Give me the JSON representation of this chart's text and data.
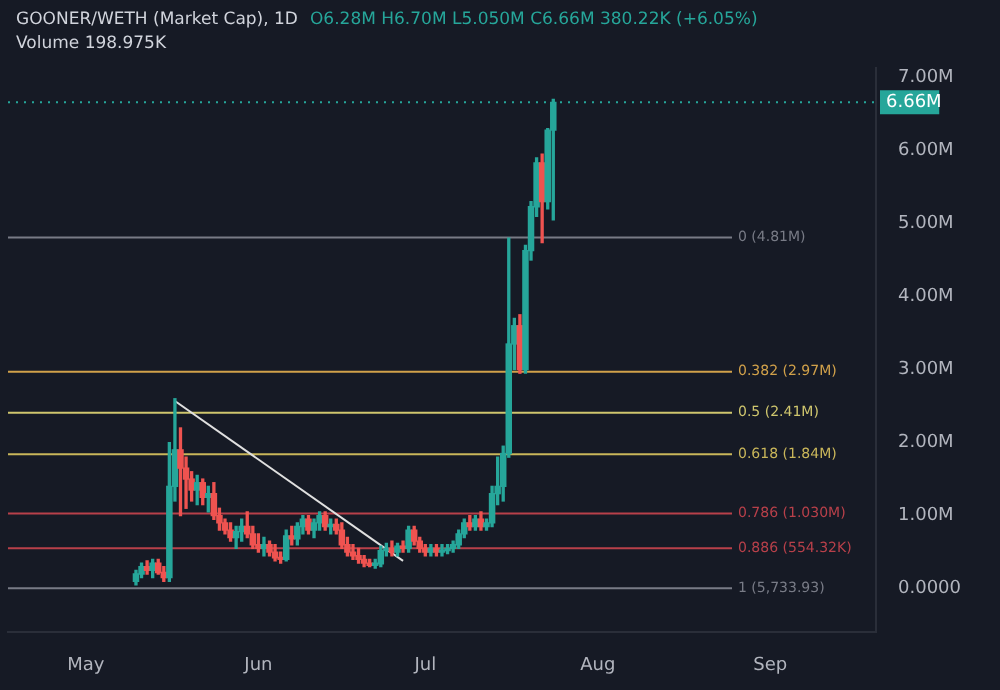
{
  "chart_data": {
    "type": "candlestick",
    "title": "GOONER/WETH (Market Cap), 1D",
    "annotations": [
      "O6.28M H6.70M L5.050M C6.66M 380.22K (+6.05%)",
      "Volume 198.975K"
    ],
    "x": [
      "--05-10",
      "--05-11",
      "--05-12",
      "--05-13",
      "--05-14",
      "--05-15",
      "--05-16",
      "--05-17",
      "--05-18",
      "--05-19",
      "--05-20",
      "--05-21",
      "--05-22",
      "--05-23",
      "--05-24",
      "--05-25",
      "--05-26",
      "--05-27",
      "--05-28",
      "--05-29",
      "--05-30",
      "--05-31",
      "--06-01",
      "--06-02",
      "--06-03",
      "--06-04",
      "--06-05",
      "--06-06",
      "--06-07",
      "--06-08",
      "--06-09",
      "--06-10",
      "--06-11",
      "--06-12",
      "--06-13",
      "--06-14",
      "--06-15",
      "--06-16",
      "--06-17",
      "--06-18",
      "--06-19",
      "--06-20",
      "--06-21",
      "--06-22",
      "--06-23",
      "--06-24",
      "--06-25",
      "--06-26",
      "--06-27",
      "--06-28",
      "--06-29",
      "--06-30",
      "--07-01",
      "--07-02",
      "--07-03",
      "--07-04",
      "--07-05",
      "--07-06",
      "--07-07",
      "--07-08",
      "--07-09",
      "--07-10",
      "--07-11",
      "--07-12",
      "--07-13",
      "--07-14",
      "--07-15",
      "--07-16",
      "--07-17",
      "--07-18",
      "--07-19",
      "--07-20",
      "--07-21",
      "--07-22",
      "--07-23",
      "--07-24"
    ],
    "ohlc": [
      [
        0.1,
        0.25,
        0.05,
        0.2
      ],
      [
        0.2,
        0.35,
        0.15,
        0.3
      ],
      [
        0.3,
        0.38,
        0.2,
        0.25
      ],
      [
        0.25,
        0.4,
        0.15,
        0.35
      ],
      [
        0.35,
        0.4,
        0.2,
        0.22
      ],
      [
        0.22,
        0.3,
        0.1,
        0.15
      ],
      [
        0.15,
        2.0,
        0.1,
        1.4
      ],
      [
        1.4,
        2.6,
        1.2,
        1.9
      ],
      [
        1.9,
        2.2,
        1.0,
        1.65
      ],
      [
        1.65,
        1.8,
        1.1,
        1.5
      ],
      [
        1.5,
        1.6,
        1.2,
        1.35
      ],
      [
        1.35,
        1.55,
        1.15,
        1.45
      ],
      [
        1.45,
        1.5,
        1.15,
        1.25
      ],
      [
        1.25,
        1.4,
        1.05,
        1.3
      ],
      [
        1.3,
        1.45,
        0.95,
        1.0
      ],
      [
        1.0,
        1.1,
        0.8,
        0.9
      ],
      [
        0.9,
        0.95,
        0.75,
        0.8
      ],
      [
        0.8,
        0.9,
        0.65,
        0.7
      ],
      [
        0.7,
        0.85,
        0.55,
        0.78
      ],
      [
        0.78,
        0.95,
        0.65,
        0.85
      ],
      [
        0.85,
        1.05,
        0.7,
        0.75
      ],
      [
        0.75,
        0.85,
        0.55,
        0.6
      ],
      [
        0.6,
        0.75,
        0.5,
        0.55
      ],
      [
        0.55,
        0.7,
        0.45,
        0.6
      ],
      [
        0.6,
        0.65,
        0.45,
        0.5
      ],
      [
        0.5,
        0.6,
        0.38,
        0.42
      ],
      [
        0.42,
        0.5,
        0.35,
        0.4
      ],
      [
        0.4,
        0.8,
        0.38,
        0.72
      ],
      [
        0.72,
        0.85,
        0.6,
        0.68
      ],
      [
        0.68,
        0.9,
        0.6,
        0.85
      ],
      [
        0.85,
        1.0,
        0.75,
        0.95
      ],
      [
        0.95,
        1.0,
        0.75,
        0.8
      ],
      [
        0.8,
        0.95,
        0.7,
        0.9
      ],
      [
        0.9,
        1.05,
        0.8,
        1.0
      ],
      [
        1.0,
        1.05,
        0.8,
        0.85
      ],
      [
        0.85,
        0.95,
        0.75,
        0.88
      ],
      [
        0.88,
        0.95,
        0.75,
        0.8
      ],
      [
        0.8,
        0.9,
        0.55,
        0.6
      ],
      [
        0.6,
        0.7,
        0.45,
        0.5
      ],
      [
        0.5,
        0.6,
        0.4,
        0.45
      ],
      [
        0.45,
        0.55,
        0.35,
        0.4
      ],
      [
        0.4,
        0.45,
        0.3,
        0.35
      ],
      [
        0.35,
        0.4,
        0.3,
        0.32
      ],
      [
        0.32,
        0.4,
        0.28,
        0.34
      ],
      [
        0.34,
        0.58,
        0.3,
        0.52
      ],
      [
        0.52,
        0.62,
        0.45,
        0.55
      ],
      [
        0.55,
        0.65,
        0.45,
        0.5
      ],
      [
        0.5,
        0.62,
        0.45,
        0.58
      ],
      [
        0.58,
        0.65,
        0.5,
        0.55
      ],
      [
        0.55,
        0.85,
        0.5,
        0.8
      ],
      [
        0.8,
        0.85,
        0.6,
        0.65
      ],
      [
        0.65,
        0.7,
        0.5,
        0.55
      ],
      [
        0.55,
        0.6,
        0.45,
        0.5
      ],
      [
        0.5,
        0.6,
        0.45,
        0.55
      ],
      [
        0.55,
        0.6,
        0.45,
        0.5
      ],
      [
        0.5,
        0.6,
        0.45,
        0.52
      ],
      [
        0.52,
        0.6,
        0.48,
        0.55
      ],
      [
        0.55,
        0.65,
        0.5,
        0.6
      ],
      [
        0.6,
        0.8,
        0.55,
        0.75
      ],
      [
        0.75,
        0.95,
        0.7,
        0.9
      ],
      [
        0.9,
        1.0,
        0.8,
        0.85
      ],
      [
        0.85,
        1.0,
        0.8,
        0.95
      ],
      [
        0.95,
        1.05,
        0.8,
        0.85
      ],
      [
        0.85,
        0.95,
        0.8,
        0.9
      ],
      [
        0.9,
        1.4,
        0.85,
        1.3
      ],
      [
        1.3,
        1.8,
        1.15,
        1.4
      ],
      [
        1.4,
        1.95,
        1.2,
        1.85
      ],
      [
        1.85,
        4.8,
        1.8,
        3.35
      ],
      [
        3.35,
        3.7,
        3.0,
        3.6
      ],
      [
        3.6,
        3.75,
        2.95,
        3.0
      ],
      [
        3.0,
        4.7,
        2.95,
        4.63
      ],
      [
        4.63,
        5.3,
        4.5,
        5.23
      ],
      [
        5.23,
        5.9,
        5.1,
        5.83
      ],
      [
        5.83,
        5.95,
        4.74,
        5.3
      ],
      [
        5.3,
        6.3,
        5.2,
        6.28
      ],
      [
        6.28,
        6.7,
        5.05,
        6.66
      ]
    ],
    "colors": [
      "#26a69a",
      "#26a69a",
      "#ef5350",
      "#26a69a",
      "#ef5350",
      "#ef5350",
      "#26a69a",
      "#26a69a",
      "#ef5350",
      "#ef5350",
      "#ef5350",
      "#26a69a",
      "#ef5350",
      "#26a69a",
      "#ef5350",
      "#ef5350",
      "#ef5350",
      "#ef5350",
      "#26a69a",
      "#26a69a",
      "#ef5350",
      "#ef5350",
      "#ef5350",
      "#26a69a",
      "#ef5350",
      "#ef5350",
      "#ef5350",
      "#26a69a",
      "#ef5350",
      "#26a69a",
      "#26a69a",
      "#ef5350",
      "#26a69a",
      "#26a69a",
      "#ef5350",
      "#26a69a",
      "#ef5350",
      "#ef5350",
      "#ef5350",
      "#ef5350",
      "#ef5350",
      "#ef5350",
      "#ef5350",
      "#26a69a",
      "#26a69a",
      "#26a69a",
      "#ef5350",
      "#26a69a",
      "#ef5350",
      "#26a69a",
      "#ef5350",
      "#ef5350",
      "#ef5350",
      "#26a69a",
      "#ef5350",
      "#26a69a",
      "#26a69a",
      "#26a69a",
      "#26a69a",
      "#26a69a",
      "#ef5350",
      "#26a69a",
      "#ef5350",
      "#26a69a",
      "#26a69a",
      "#26a69a",
      "#26a69a",
      "#26a69a",
      "#26a69a",
      "#ef5350",
      "#26a69a",
      "#26a69a",
      "#26a69a",
      "#ef5350",
      "#26a69a",
      "#26a69a"
    ],
    "series": [
      {
        "type": "line",
        "color": "#e0e0e0",
        "x": [
          "--05-17",
          "--06-27"
        ],
        "values": [
          2.57,
          0.38
        ]
      }
    ],
    "ref_lines": [
      {
        "axis": "y",
        "value": 6.66,
        "label": "6.66M",
        "color": "#26a69a",
        "line_style": "dotted"
      },
      {
        "axis": "y",
        "value": 4.81,
        "label": "0 (4.81M)",
        "color": "#787b86"
      },
      {
        "axis": "y",
        "value": 2.97,
        "label": "0.382 (2.97M)",
        "color": "#d1a14a"
      },
      {
        "axis": "y",
        "value": 2.41,
        "label": "0.5 (2.41M)",
        "color": "#cfc66e"
      },
      {
        "axis": "y",
        "value": 1.84,
        "label": "0.618 (1.84M)",
        "color": "#c9b65a"
      },
      {
        "axis": "y",
        "value": 1.03,
        "label": "0.786 (1.030M)",
        "color": "#b8404a"
      },
      {
        "axis": "y",
        "value": 0.554,
        "label": "0.886 (554.32K)",
        "color": "#b8404a"
      },
      {
        "axis": "y",
        "value": 0.0057,
        "label": "1 (5,733.93)",
        "color": "#787b86"
      }
    ],
    "xlim": [
      "--04-17",
      "--09-20"
    ],
    "xticks": [
      {
        "value": "--05-01",
        "label": "May"
      },
      {
        "value": "--06-01",
        "label": "Jun"
      },
      {
        "value": "--07-01",
        "label": "Jul"
      },
      {
        "value": "--08-01",
        "label": "Aug"
      },
      {
        "value": "--09-01",
        "label": "Sep"
      }
    ],
    "ylim": [
      -0.6,
      7.13
    ],
    "yticks": [
      {
        "value": 0,
        "label": "0.0000"
      },
      {
        "value": 1,
        "label": "1.00M"
      },
      {
        "value": 2,
        "label": "2.00M"
      },
      {
        "value": 3,
        "label": "3.00M"
      },
      {
        "value": 4,
        "label": "4.00M"
      },
      {
        "value": 5,
        "label": "5.00M"
      },
      {
        "value": 6,
        "label": "6.00M"
      },
      {
        "value": 7,
        "label": "7.00M"
      }
    ],
    "grid": false,
    "legend": false
  }
}
